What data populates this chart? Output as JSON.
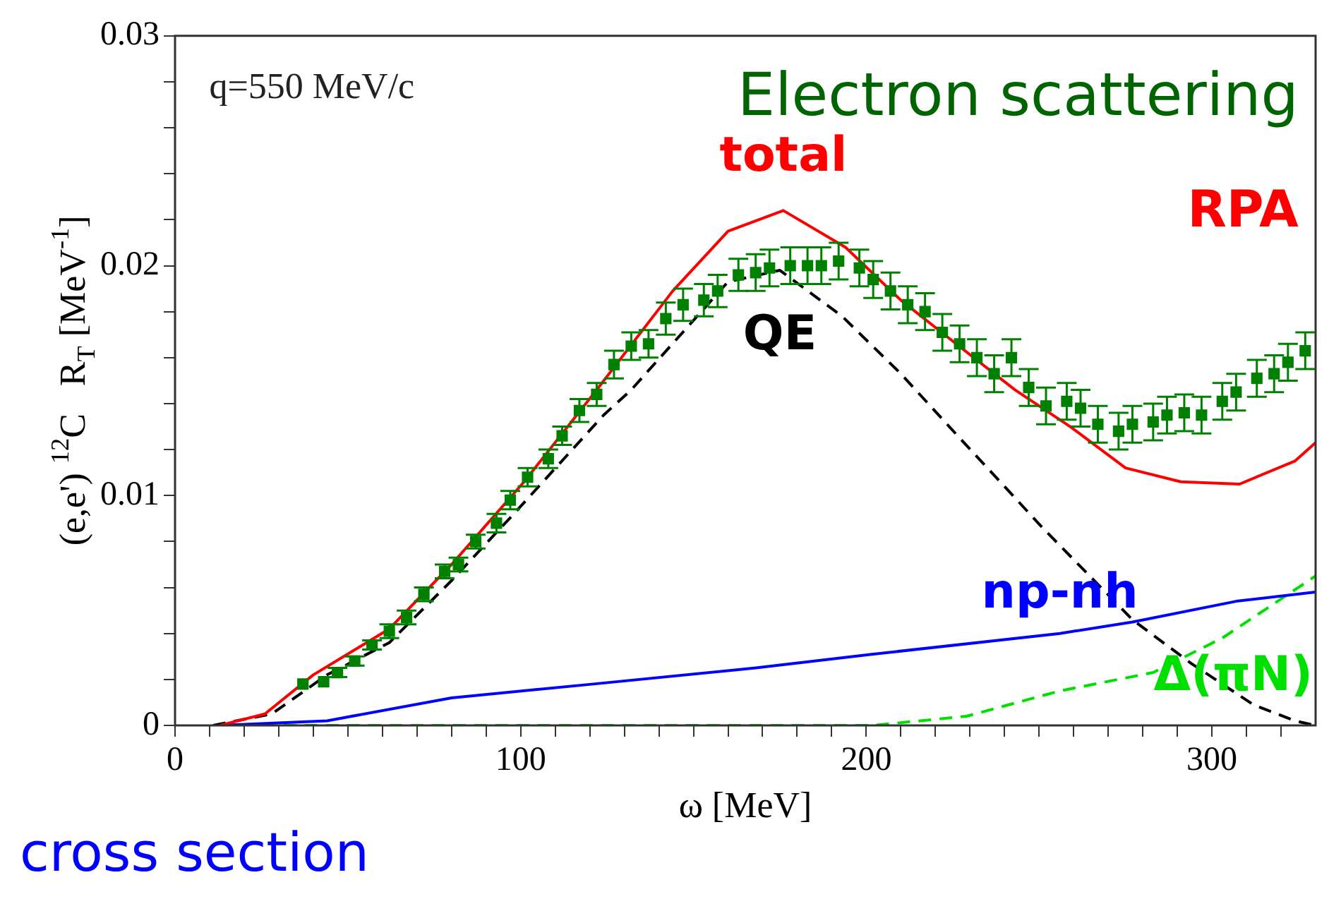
{
  "chart_data": {
    "type": "line",
    "xlabel": "ω [MeV]",
    "ylabel": "(e,e') $^{12}$C   R$_{T}$ [MeV$^{-1}$]",
    "annotations": [
      "q=550 MeV/c",
      "Electron scattering",
      "RPA",
      "cross section"
    ],
    "xlim": [
      0,
      330
    ],
    "ylim": [
      0,
      0.03
    ],
    "xticks": [
      0,
      {
        "value": 10,
        "label": null
      },
      {
        "value": 20,
        "label": null
      },
      {
        "value": 30,
        "label": null
      },
      {
        "value": 40,
        "label": null
      },
      {
        "value": 50,
        "label": null
      },
      {
        "value": 60,
        "label": null
      },
      {
        "value": 70,
        "label": null
      },
      {
        "value": 80,
        "label": null
      },
      {
        "value": 90,
        "label": null
      },
      100,
      {
        "value": 110,
        "label": null
      },
      {
        "value": 120,
        "label": null
      },
      {
        "value": 130,
        "label": null
      },
      {
        "value": 140,
        "label": null
      },
      {
        "value": 150,
        "label": null
      },
      {
        "value": 160,
        "label": null
      },
      {
        "value": 170,
        "label": null
      },
      {
        "value": 180,
        "label": null
      },
      {
        "value": 190,
        "label": null
      },
      200,
      {
        "value": 210,
        "label": null
      },
      {
        "value": 220,
        "label": null
      },
      {
        "value": 230,
        "label": null
      },
      {
        "value": 240,
        "label": null
      },
      {
        "value": 250,
        "label": null
      },
      {
        "value": 260,
        "label": null
      },
      {
        "value": 270,
        "label": null
      },
      {
        "value": 280,
        "label": null
      },
      {
        "value": 290,
        "label": null
      },
      300,
      {
        "value": 310,
        "label": null
      },
      {
        "value": 320,
        "label": null
      }
    ],
    "yticks": [
      0,
      {
        "value": 0.002,
        "label": null
      },
      {
        "value": 0.004,
        "label": null
      },
      {
        "value": 0.006,
        "label": null
      },
      {
        "value": 0.008,
        "label": null
      },
      0.01,
      {
        "value": 0.012,
        "label": null
      },
      {
        "value": 0.014,
        "label": null
      },
      {
        "value": 0.016,
        "label": null
      },
      {
        "value": 0.018,
        "label": null
      },
      0.02,
      {
        "value": 0.022,
        "label": null
      },
      {
        "value": 0.024,
        "label": null
      },
      {
        "value": 0.026,
        "label": null
      },
      {
        "value": 0.028,
        "label": null
      },
      0.03
    ],
    "grid": false,
    "legend": false,
    "series": [
      {
        "name": "total",
        "color": "#ff0000",
        "line_style": "solid",
        "marker": "none",
        "x": [
          13,
          26,
          40,
          62,
          80,
          101,
          122,
          144,
          160,
          176,
          194,
          210,
          226,
          243,
          259,
          275,
          291,
          308,
          324,
          330
        ],
        "values": [
          0,
          0.0005,
          0.0022,
          0.0042,
          0.007,
          0.0106,
          0.0146,
          0.0189,
          0.0215,
          0.0224,
          0.0208,
          0.0185,
          0.0166,
          0.0146,
          0.013,
          0.0112,
          0.0106,
          0.0105,
          0.0115,
          0.0123
        ]
      },
      {
        "name": "QE",
        "color": "#000000",
        "line_style": "dashed",
        "marker": "none",
        "x": [
          11,
          28,
          44,
          62,
          80,
          98,
          124,
          132,
          160,
          175,
          193,
          210,
          224,
          251,
          277,
          294,
          312,
          324,
          330
        ],
        "values": [
          0,
          0.0005,
          0.0022,
          0.0036,
          0.0063,
          0.0092,
          0.0135,
          0.0146,
          0.0193,
          0.0198,
          0.0178,
          0.0153,
          0.013,
          0.0086,
          0.0046,
          0.0027,
          0.0009,
          0.0002,
          0
        ]
      },
      {
        "name": "np-nh",
        "color": "#0000ff",
        "line_style": "solid",
        "marker": "none",
        "x": [
          13,
          44,
          80,
          121,
          168,
          202,
          256,
          277,
          307,
          330
        ],
        "values": [
          0,
          0.0002,
          0.0012,
          0.0018,
          0.0025,
          0.0031,
          0.004,
          0.0045,
          0.0054,
          0.0058
        ]
      },
      {
        "name": "Δ(πN)",
        "color": "#00e000",
        "line_style": "dashed",
        "marker": "none",
        "x": [
          13,
          202,
          229,
          256,
          283,
          303,
          317,
          330
        ],
        "values": [
          0,
          0,
          0.0004,
          0.0015,
          0.0023,
          0.0038,
          0.0052,
          0.0065
        ]
      },
      {
        "type": "scatter",
        "color": "#008000",
        "marker": "square",
        "x": [
          37,
          43,
          47,
          52,
          57,
          62,
          67,
          72,
          78,
          82,
          87,
          93,
          97,
          102,
          108,
          112,
          117,
          122,
          127,
          132,
          137,
          142,
          147,
          153,
          157,
          163,
          168,
          172,
          178,
          183,
          187,
          192,
          198,
          202,
          207,
          212,
          217,
          222,
          227,
          232,
          237,
          242,
          247,
          252,
          258,
          262,
          267,
          273,
          277,
          283,
          287,
          292,
          297,
          303,
          307,
          313,
          318,
          322,
          327
        ],
        "values": [
          0.0018,
          0.0019,
          0.0023,
          0.0028,
          0.0035,
          0.0041,
          0.0047,
          0.0057,
          0.0067,
          0.007,
          0.008,
          0.0088,
          0.0098,
          0.0108,
          0.0116,
          0.0126,
          0.0137,
          0.0144,
          0.0157,
          0.0165,
          0.0166,
          0.0177,
          0.0183,
          0.0185,
          0.0189,
          0.0196,
          0.0197,
          0.0199,
          0.02,
          0.02,
          0.02,
          0.0202,
          0.0199,
          0.0194,
          0.0189,
          0.0183,
          0.018,
          0.0171,
          0.0166,
          0.016,
          0.0153,
          0.016,
          0.0147,
          0.0139,
          0.0141,
          0.0138,
          0.0131,
          0.0128,
          0.0131,
          0.0132,
          0.0135,
          0.0136,
          0.0135,
          0.0141,
          0.0145,
          0.0151,
          0.0153,
          0.0158,
          0.0163
        ],
        "errors": [
          null,
          null,
          0.0002,
          0.0002,
          0.0002,
          0.0003,
          0.0003,
          0.0003,
          0.0003,
          0.0003,
          0.0003,
          0.0004,
          0.0004,
          0.0004,
          0.0004,
          0.0004,
          0.0005,
          0.0005,
          0.0006,
          0.0006,
          0.0006,
          0.0007,
          0.0007,
          0.0007,
          0.0007,
          0.0007,
          0.0008,
          0.0008,
          0.0008,
          0.0008,
          0.0008,
          0.0008,
          0.0008,
          0.0008,
          0.0008,
          0.0008,
          0.0008,
          0.0008,
          0.0008,
          0.0008,
          0.0008,
          0.0008,
          0.0008,
          0.0008,
          0.0008,
          0.0008,
          0.0008,
          0.0008,
          0.0008,
          0.0008,
          0.0008,
          0.0008,
          0.0008,
          0.0008,
          0.0008,
          0.0008,
          0.0008,
          0.0008,
          0.0008
        ]
      }
    ]
  }
}
